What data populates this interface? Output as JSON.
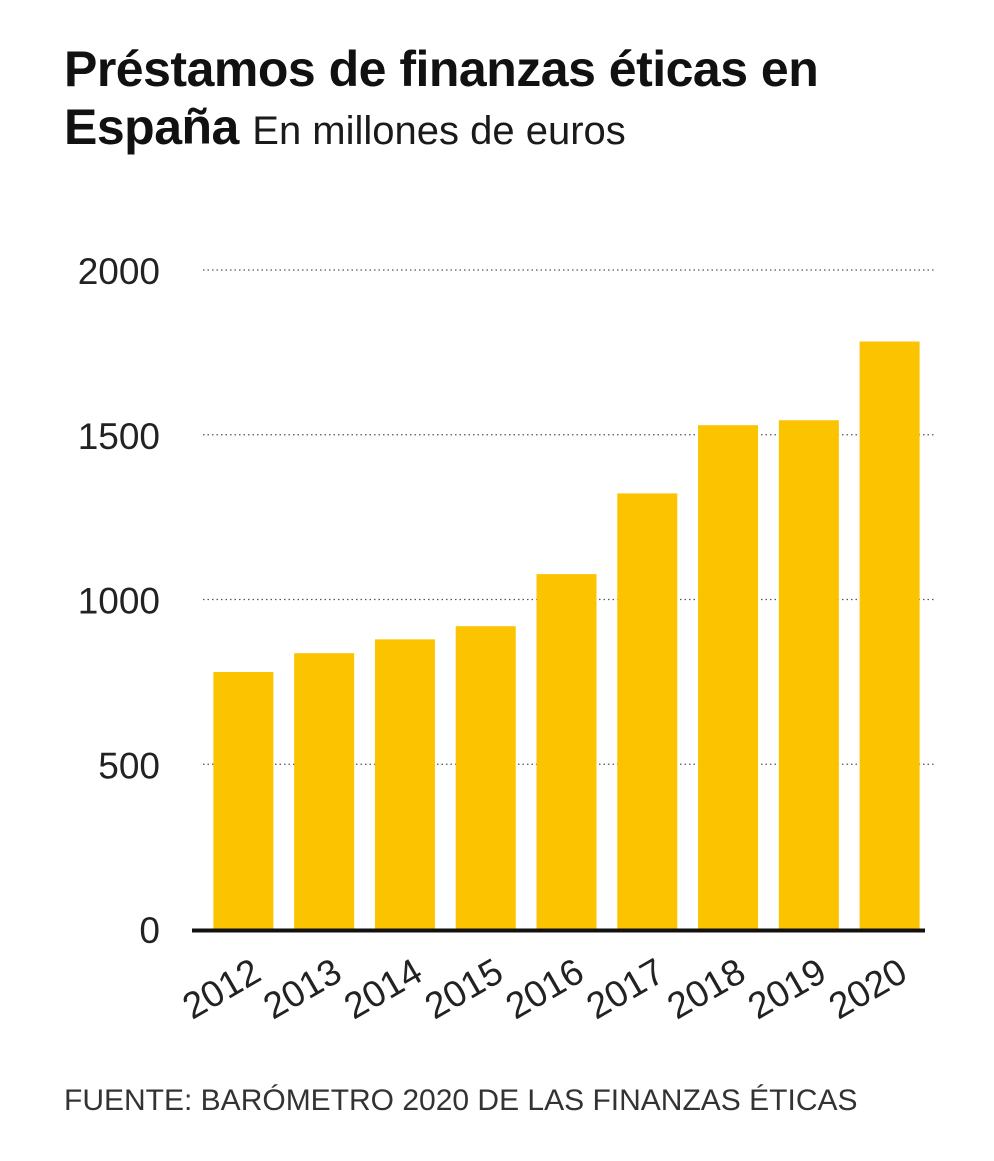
{
  "title": "Préstamos de finanzas éticas en España",
  "subtitle": "En millones de euros",
  "source": "FUENTE: BARÓMETRO 2020 DE LAS FINANZAS ÉTICAS",
  "colors": {
    "bar": "#FCC300",
    "axis": "#111111",
    "grid": "#555555",
    "text": "#222222"
  },
  "chart_data": {
    "type": "bar",
    "title": "Préstamos de finanzas éticas en España",
    "subtitle": "En millones de euros",
    "xlabel": "",
    "ylabel": "",
    "categories": [
      "2012",
      "2013",
      "2014",
      "2015",
      "2016",
      "2017",
      "2018",
      "2019",
      "2020"
    ],
    "values": [
      780,
      837,
      879,
      919,
      1077,
      1322,
      1529,
      1544,
      1783
    ],
    "ylim": [
      0,
      2000
    ],
    "yticks": [
      "0",
      "500",
      "1000",
      "1500",
      "2000"
    ],
    "ytick_values": [
      0,
      500,
      1000,
      1500,
      2000
    ],
    "grid": true,
    "grid_style": "dotted",
    "legend": "none"
  }
}
